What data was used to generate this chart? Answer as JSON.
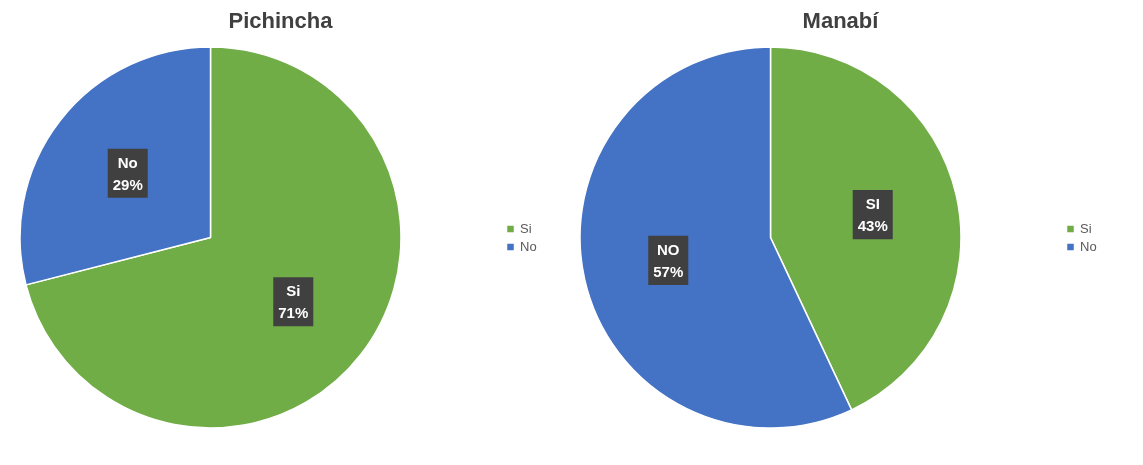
{
  "chart_data": [
    {
      "type": "pie",
      "title": "Pichincha",
      "categories": [
        "Si",
        "No"
      ],
      "values": [
        71,
        29
      ],
      "colors": [
        "#70ad47",
        "#4472c4"
      ],
      "value_labels": [
        "Si\n71%",
        "No\n29%"
      ],
      "legend": "right"
    },
    {
      "type": "pie",
      "title": "Manabí",
      "categories": [
        "Si",
        "No"
      ],
      "values": [
        43,
        57
      ],
      "colors": [
        "#70ad47",
        "#4472c4"
      ],
      "value_labels": [
        "SI\n43%",
        "NO\n57%"
      ],
      "legend": "right"
    }
  ]
}
